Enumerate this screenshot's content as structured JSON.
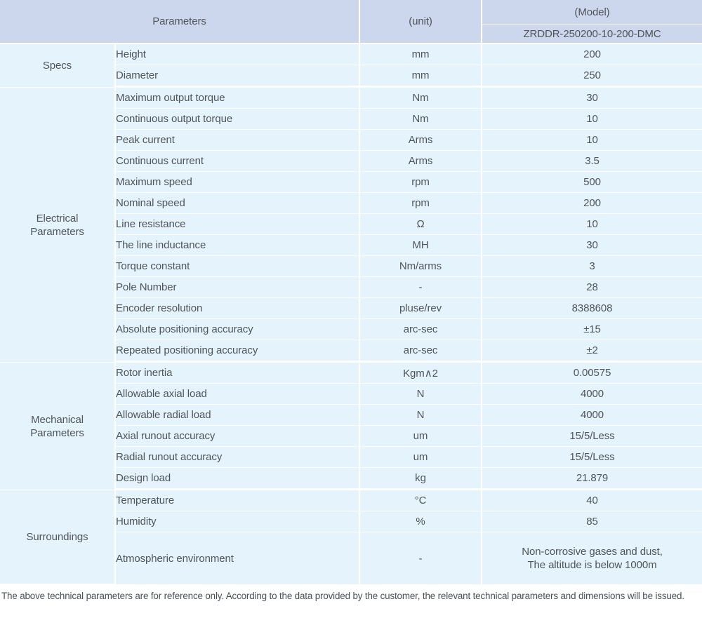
{
  "table": {
    "header": {
      "parameters": "Parameters",
      "unit": "(unit)",
      "model": "(Model)",
      "model_value": "ZRDDR-250200-10-200-DMC"
    },
    "groups": [
      {
        "label": "Specs",
        "rows": [
          {
            "param": "Height",
            "unit": "mm",
            "value": "200"
          },
          {
            "param": "Diameter",
            "unit": "mm",
            "value": "250"
          }
        ]
      },
      {
        "label": "Electrical\nParameters",
        "rows": [
          {
            "param": "Maximum output torque",
            "unit": "Nm",
            "value": "30"
          },
          {
            "param": "Continuous output torque",
            "unit": "Nm",
            "value": "10"
          },
          {
            "param": "Peak current",
            "unit": "Arms",
            "value": "10"
          },
          {
            "param": "Continuous current",
            "unit": "Arms",
            "value": "3.5"
          },
          {
            "param": "Maximum speed",
            "unit": "rpm",
            "value": "500"
          },
          {
            "param": "Nominal speed",
            "unit": "rpm",
            "value": "200"
          },
          {
            "param": "Line resistance",
            "unit": "Ω",
            "value": "10"
          },
          {
            "param": "The line inductance",
            "unit": "MH",
            "value": "30"
          },
          {
            "param": "Torque constant",
            "unit": "Nm/arms",
            "value": "3"
          },
          {
            "param": "Pole Number",
            "unit": "-",
            "value": "28"
          },
          {
            "param": "Encoder resolution",
            "unit": "pluse/rev",
            "value": "8388608"
          },
          {
            "param": "Absolute positioning accuracy",
            "unit": "arc-sec",
            "value": "±15"
          },
          {
            "param": "Repeated positioning accuracy",
            "unit": "arc-sec",
            "value": "±2"
          }
        ]
      },
      {
        "label": "Mechanical\nParameters",
        "rows": [
          {
            "param": "Rotor inertia",
            "unit": "Kgm∧2",
            "value": "0.00575"
          },
          {
            "param": "Allowable axial load",
            "unit": "N",
            "value": "4000"
          },
          {
            "param": "Allowable radial load",
            "unit": "N",
            "value": "4000"
          },
          {
            "param": "Axial runout accuracy",
            "unit": "um",
            "value": "15/5/Less"
          },
          {
            "param": "Radial runout accuracy",
            "unit": "um",
            "value": "15/5/Less"
          },
          {
            "param": "Design load",
            "unit": "kg",
            "value": "21.879"
          }
        ]
      },
      {
        "label": "Surroundings",
        "rows": [
          {
            "param": "Temperature",
            "unit": "°C",
            "value": "40"
          },
          {
            "param": "Humidity",
            "unit": "%",
            "value": "85"
          },
          {
            "param": "Atmospheric environment",
            "unit": "-",
            "value": "Non-corrosive gases and dust,\nThe altitude is below 1000m"
          }
        ]
      }
    ]
  },
  "footer": {
    "note": "The above technical parameters are for reference only. According to the data provided by the customer, the relevant technical parameters and dimensions will be issued."
  },
  "colors": {
    "header_bg": "#ccd6ec",
    "cell_bg": "#e4f3fc",
    "separator": "#ffffff"
  }
}
